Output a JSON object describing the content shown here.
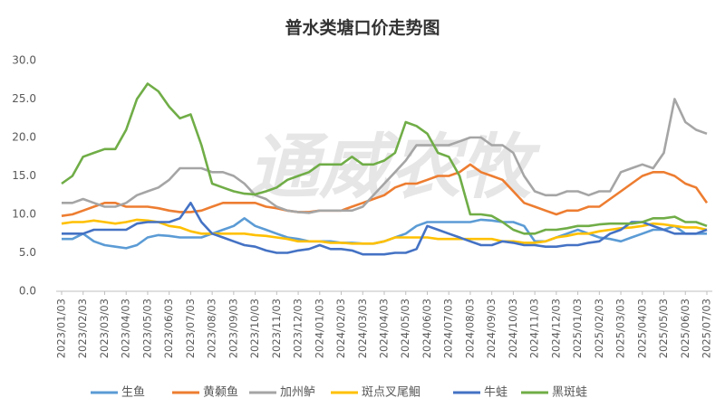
{
  "chart_data": {
    "type": "line",
    "title": "普水类塘口价走势图",
    "watermark": "通威农牧",
    "categories": [
      "2023/01/03",
      null,
      "2023/02/03",
      null,
      "2023/03/03",
      null,
      "2023/04/03",
      null,
      "2023/05/03",
      null,
      "2023/06/03",
      null,
      "2023/07/03",
      null,
      "2023/08/03",
      null,
      "2023/09/03",
      null,
      "2023/10/03",
      null,
      "2023/11/03",
      null,
      "2023/12/03",
      null,
      "2024/01/03",
      null,
      "2024/02/03",
      null,
      "2024/03/03",
      null,
      "2024/04/03",
      null,
      "2024/05/03",
      null,
      "2024/06/03",
      null,
      "2024/07/03",
      null,
      "2024/08/03",
      null,
      "2024/09/03",
      null,
      "2024/10/03",
      null,
      "2024/11/03",
      null,
      "2024/12/03",
      null,
      "2025/01/03",
      null,
      "2025/02/03",
      null,
      "2025/03/03",
      null,
      "2025/04/03",
      null,
      "2025/05/03",
      null,
      "2025/06/03",
      null,
      "2025/07/03"
    ],
    "ylim": [
      0,
      30
    ],
    "yticks": [
      {
        "value": 0,
        "label": "0.0"
      },
      {
        "value": 5,
        "label": "5.0"
      },
      {
        "value": 10,
        "label": "10.0"
      },
      {
        "value": 15,
        "label": "15.0"
      },
      {
        "value": 20,
        "label": "20.0"
      },
      {
        "value": 25,
        "label": "25.0"
      },
      {
        "value": 30,
        "label": "30.0"
      }
    ],
    "grid": false,
    "legend": "bottom",
    "series": [
      {
        "name": "生鱼",
        "color": "#5b9bd5",
        "values": [
          6.8,
          6.8,
          7.5,
          6.5,
          6,
          5.8,
          5.6,
          6,
          7,
          7.3,
          7.2,
          7,
          7,
          7,
          7.5,
          8,
          8.5,
          9.5,
          8.5,
          8,
          7.5,
          7,
          6.8,
          6.5,
          6.5,
          6.5,
          6.3,
          6.3,
          6.2,
          6.2,
          6.5,
          7,
          7.5,
          8.5,
          9,
          9,
          9,
          9,
          9,
          9.3,
          9.2,
          9,
          9,
          8.5,
          6.5,
          6.5,
          7,
          7.5,
          8,
          7.5,
          7,
          6.8,
          6.5,
          7,
          7.5,
          8,
          8,
          8.5,
          7.5,
          7.5,
          7.5
        ]
      },
      {
        "name": "黄颡鱼",
        "color": "#ed7d31",
        "values": [
          9.8,
          10,
          10.5,
          11,
          11.5,
          11.5,
          11,
          11,
          11,
          10.8,
          10.5,
          10.3,
          10.3,
          10.5,
          11,
          11.5,
          11.5,
          11.5,
          11.5,
          11,
          10.8,
          10.5,
          10.3,
          10.3,
          10.5,
          10.5,
          10.5,
          11,
          11.5,
          12,
          12.5,
          13.5,
          14,
          14,
          14.5,
          15,
          15,
          15.5,
          16.5,
          15.5,
          15,
          14.5,
          13,
          11.5,
          11,
          10.5,
          10,
          10.5,
          10.5,
          11,
          11,
          12,
          13,
          14,
          15,
          15.5,
          15.5,
          15,
          14,
          13.5,
          11.5
        ]
      },
      {
        "name": "加州鲈",
        "color": "#a5a5a5",
        "values": [
          11.5,
          11.5,
          12,
          11.5,
          11,
          11,
          11.5,
          12.5,
          13,
          13.5,
          14.5,
          16,
          16,
          16,
          15.5,
          15.5,
          15,
          14,
          12.5,
          12,
          11,
          10.5,
          10.3,
          10.2,
          10.5,
          10.5,
          10.5,
          10.5,
          11,
          12.5,
          14,
          15.5,
          17,
          19,
          19,
          19,
          19,
          19.5,
          20,
          20,
          19,
          19,
          18,
          15,
          13,
          12.5,
          12.5,
          13,
          13,
          12.5,
          13,
          13,
          15.5,
          16,
          16.5,
          16,
          18,
          25,
          22,
          21,
          20.5
        ]
      },
      {
        "name": "斑点叉尾鮰",
        "color": "#ffc000",
        "values": [
          8.8,
          9,
          9,
          9.2,
          9,
          8.8,
          9,
          9.3,
          9.2,
          9,
          8.5,
          8.3,
          7.8,
          7.5,
          7.5,
          7.5,
          7.5,
          7.5,
          7.3,
          7.2,
          7,
          6.8,
          6.5,
          6.5,
          6.5,
          6.3,
          6.3,
          6.2,
          6.2,
          6.2,
          6.5,
          7,
          7,
          7,
          7,
          6.8,
          6.8,
          6.8,
          6.8,
          6.8,
          6.8,
          6.5,
          6.5,
          6.3,
          6.3,
          6.5,
          7,
          7.2,
          7.5,
          7.5,
          7.8,
          8,
          8.2,
          8.3,
          8.5,
          8.8,
          8.7,
          8.5,
          8.3,
          8.3,
          8
        ]
      },
      {
        "name": "牛蛙",
        "color": "#4472c4",
        "values": [
          7.5,
          7.5,
          7.5,
          8,
          8,
          8,
          8,
          8.8,
          9,
          9,
          9,
          9.5,
          11.5,
          9,
          7.5,
          7,
          6.5,
          6,
          5.8,
          5.3,
          5,
          5,
          5.3,
          5.5,
          6,
          5.5,
          5.5,
          5.3,
          4.8,
          4.8,
          4.8,
          5,
          5,
          5.5,
          8.5,
          8,
          7.5,
          7,
          6.5,
          6,
          6,
          6.5,
          6.3,
          6,
          6,
          5.8,
          5.8,
          6,
          6,
          6.3,
          6.5,
          7.5,
          8,
          9,
          9,
          8.5,
          8,
          7.5,
          7.5,
          7.5,
          8
        ]
      },
      {
        "name": "黑斑蛙",
        "color": "#70ad47",
        "values": [
          14,
          15,
          17.5,
          18,
          18.5,
          18.5,
          21,
          25,
          27,
          26,
          24,
          22.5,
          23,
          19,
          14,
          13.5,
          13,
          12.7,
          12.6,
          13,
          13.5,
          14.5,
          15,
          15.5,
          16.5,
          16.5,
          16.5,
          17.5,
          16.5,
          16.5,
          17,
          18,
          22,
          21.5,
          20.5,
          18,
          17.5,
          15,
          10,
          10,
          9.8,
          9,
          8,
          7.5,
          7.5,
          8,
          8,
          8.2,
          8.5,
          8.5,
          8.7,
          8.8,
          8.8,
          8.8,
          9,
          9.5,
          9.5,
          9.7,
          9,
          9,
          8.5
        ]
      }
    ]
  }
}
